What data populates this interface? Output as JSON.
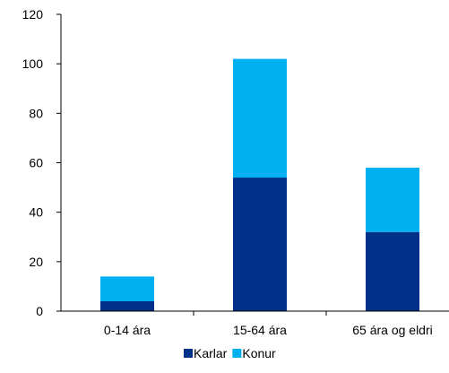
{
  "chart_data": {
    "type": "bar",
    "stacked": true,
    "categories": [
      "0-14 ára",
      "15-64 ára",
      "65 ára og eldri"
    ],
    "series": [
      {
        "name": "Karlar",
        "values": [
          4,
          54,
          32
        ],
        "color": "#003087"
      },
      {
        "name": "Konur",
        "values": [
          10,
          48,
          26
        ],
        "color": "#00B0F0"
      }
    ],
    "title": "",
    "xlabel": "",
    "ylabel": "",
    "ylim": [
      0,
      120
    ],
    "yticks": [
      0,
      20,
      40,
      60,
      80,
      100,
      120
    ],
    "grid": false,
    "legend_position": "bottom"
  }
}
